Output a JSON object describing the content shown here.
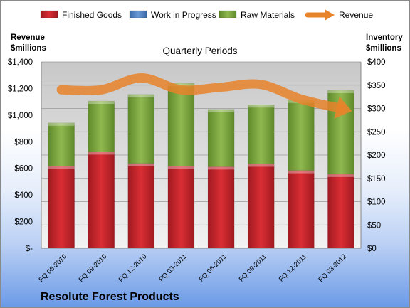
{
  "chart_data": {
    "type": "bar",
    "subtitle": "Quarterly Periods",
    "company": "Resolute Forest Products",
    "left_axis_title": [
      "Revenue",
      "$millions"
    ],
    "right_axis_title": [
      "Inventory",
      "$millions"
    ],
    "categories": [
      "FQ 06-2010",
      "FQ 09-2010",
      "FQ 12-2010",
      "FQ 03-2011",
      "FQ 06-2011",
      "FQ 09-2011",
      "FQ 12-2011",
      "FQ 03-2012"
    ],
    "left_ticks": [
      "$-",
      "$200",
      "$400",
      "$600",
      "$800",
      "$1,000",
      "$1,200",
      "$1,400"
    ],
    "right_ticks": [
      "$0",
      "$50",
      "$100",
      "$150",
      "$200",
      "$250",
      "$300",
      "$350",
      "$400"
    ],
    "left_ylim": [
      0,
      1400
    ],
    "right_ylim": [
      0,
      400
    ],
    "stacked": true,
    "legend_position": "top",
    "grid": true,
    "series": [
      {
        "name": "Finished Goods",
        "axis": "right",
        "kind": "bar",
        "color": "#c0242a",
        "values": [
          176,
          207,
          182,
          176,
          175,
          181,
          167,
          159
        ]
      },
      {
        "name": "Work in Progress",
        "axis": "right",
        "kind": "bar",
        "color": "#4f81bd",
        "values": [
          0,
          0,
          0,
          0,
          0,
          0,
          0,
          0
        ]
      },
      {
        "name": "Raw Materials",
        "axis": "right",
        "kind": "bar",
        "color": "#77a13c",
        "values": [
          93,
          109,
          148,
          178,
          123,
          127,
          151,
          180
        ]
      },
      {
        "name": "Revenue",
        "axis": "left",
        "kind": "line",
        "color": "#e8832a",
        "values": [
          1190,
          1190,
          1280,
          1190,
          1210,
          1230,
          1120,
          1050
        ]
      }
    ]
  }
}
